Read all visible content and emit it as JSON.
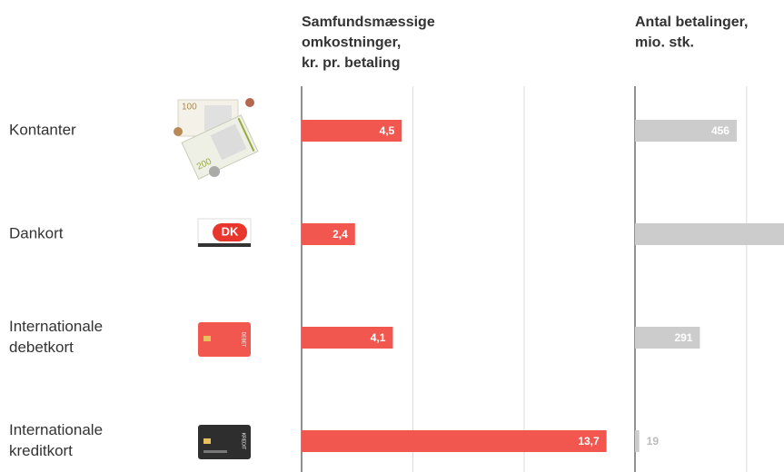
{
  "chart_data": [
    {
      "type": "barh",
      "title_lines": [
        "Samfundsmæssige",
        "omkostninger,",
        "kr. pr. betaling"
      ],
      "categories": [
        [
          "Kontanter"
        ],
        [
          "Dankort"
        ],
        [
          "Internationale",
          "debetkort"
        ],
        [
          "Internationale",
          "kreditkort"
        ]
      ],
      "values": [
        4.5,
        2.4,
        4.1,
        13.7
      ],
      "value_labels": [
        "4,5",
        "2,4",
        "4,1",
        "13,7"
      ],
      "color": "#f2574f",
      "xlim": [
        0,
        15
      ],
      "xticks": [
        0,
        5,
        10
      ],
      "grid": true
    },
    {
      "type": "barh",
      "title_lines": [
        "Antal betalinger,",
        "mio. stk."
      ],
      "values": [
        456,
        1000,
        291,
        19
      ],
      "value_labels": [
        "456",
        null,
        "291",
        "19"
      ],
      "color": "#cccccc",
      "xlim": [
        0,
        1000
      ],
      "xticks": [
        0,
        500
      ],
      "grid": true
    }
  ],
  "icons": {
    "bill_a": "100",
    "bill_b": "200",
    "debit": "DEBET",
    "credit": "KREDIT"
  }
}
